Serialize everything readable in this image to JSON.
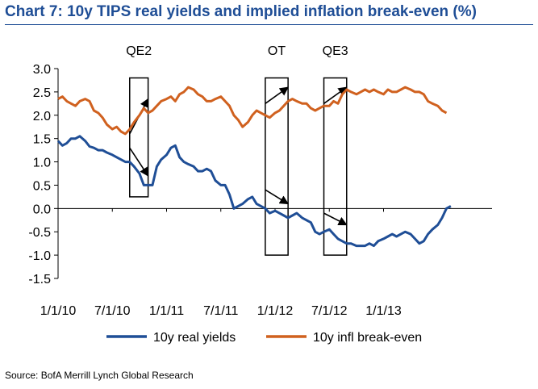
{
  "chart_data": {
    "type": "line",
    "title": "Chart 7: 10y TIPS real yields and implied inflation break-even (%)",
    "source": "Source: BofA Merrill Lynch Global Research",
    "ylim": [
      -1.5,
      3.0
    ],
    "yticks": [
      "3.0",
      "2.5",
      "2.0",
      "1.5",
      "1.0",
      "0.5",
      "0.0",
      "-0.5",
      "-1.0",
      "-1.5"
    ],
    "xlim": [
      2010.0,
      2014.0
    ],
    "xticks": [
      {
        "label": "1/1/10",
        "x": 2010.0
      },
      {
        "label": "7/1/10",
        "x": 2010.5
      },
      {
        "label": "1/1/11",
        "x": 2011.0
      },
      {
        "label": "7/1/11",
        "x": 2011.5
      },
      {
        "label": "1/1/12",
        "x": 2012.0
      },
      {
        "label": "7/1/12",
        "x": 2012.5
      },
      {
        "label": "1/1/13",
        "x": 2013.0
      }
    ],
    "legend_position": "bottom",
    "series": [
      {
        "name": "10y real yields",
        "color": "#1f4e96",
        "points": [
          [
            2010.0,
            1.45
          ],
          [
            2010.04,
            1.35
          ],
          [
            2010.08,
            1.4
          ],
          [
            2010.12,
            1.5
          ],
          [
            2010.16,
            1.5
          ],
          [
            2010.2,
            1.55
          ],
          [
            2010.25,
            1.45
          ],
          [
            2010.29,
            1.33
          ],
          [
            2010.33,
            1.3
          ],
          [
            2010.37,
            1.25
          ],
          [
            2010.41,
            1.25
          ],
          [
            2010.45,
            1.2
          ],
          [
            2010.5,
            1.15
          ],
          [
            2010.54,
            1.1
          ],
          [
            2010.58,
            1.05
          ],
          [
            2010.62,
            1.0
          ],
          [
            2010.66,
            1.0
          ],
          [
            2010.7,
            0.9
          ],
          [
            2010.75,
            0.75
          ],
          [
            2010.79,
            0.5
          ],
          [
            2010.83,
            0.5
          ],
          [
            2010.87,
            0.5
          ],
          [
            2010.91,
            0.9
          ],
          [
            2010.95,
            1.05
          ],
          [
            2011.0,
            1.15
          ],
          [
            2011.04,
            1.3
          ],
          [
            2011.08,
            1.35
          ],
          [
            2011.12,
            1.1
          ],
          [
            2011.16,
            1.0
          ],
          [
            2011.2,
            0.95
          ],
          [
            2011.25,
            0.9
          ],
          [
            2011.29,
            0.8
          ],
          [
            2011.33,
            0.8
          ],
          [
            2011.37,
            0.85
          ],
          [
            2011.41,
            0.8
          ],
          [
            2011.45,
            0.6
          ],
          [
            2011.5,
            0.5
          ],
          [
            2011.54,
            0.5
          ],
          [
            2011.58,
            0.3
          ],
          [
            2011.62,
            0.0
          ],
          [
            2011.66,
            0.05
          ],
          [
            2011.7,
            0.1
          ],
          [
            2011.75,
            0.2
          ],
          [
            2011.79,
            0.25
          ],
          [
            2011.83,
            0.1
          ],
          [
            2011.87,
            0.05
          ],
          [
            2011.91,
            0.0
          ],
          [
            2011.95,
            -0.1
          ],
          [
            2012.0,
            -0.05
          ],
          [
            2012.04,
            -0.1
          ],
          [
            2012.08,
            -0.15
          ],
          [
            2012.12,
            -0.2
          ],
          [
            2012.16,
            -0.15
          ],
          [
            2012.2,
            -0.1
          ],
          [
            2012.25,
            -0.2
          ],
          [
            2012.29,
            -0.25
          ],
          [
            2012.33,
            -0.3
          ],
          [
            2012.37,
            -0.5
          ],
          [
            2012.41,
            -0.55
          ],
          [
            2012.45,
            -0.5
          ],
          [
            2012.5,
            -0.45
          ],
          [
            2012.54,
            -0.55
          ],
          [
            2012.58,
            -0.65
          ],
          [
            2012.62,
            -0.7
          ],
          [
            2012.66,
            -0.75
          ],
          [
            2012.7,
            -0.75
          ],
          [
            2012.75,
            -0.8
          ],
          [
            2012.79,
            -0.8
          ],
          [
            2012.83,
            -0.8
          ],
          [
            2012.87,
            -0.75
          ],
          [
            2012.91,
            -0.8
          ],
          [
            2012.95,
            -0.7
          ],
          [
            2013.0,
            -0.65
          ],
          [
            2013.04,
            -0.6
          ],
          [
            2013.08,
            -0.55
          ],
          [
            2013.12,
            -0.6
          ],
          [
            2013.16,
            -0.55
          ],
          [
            2013.2,
            -0.5
          ],
          [
            2013.25,
            -0.55
          ],
          [
            2013.29,
            -0.65
          ],
          [
            2013.33,
            -0.75
          ],
          [
            2013.37,
            -0.7
          ],
          [
            2013.41,
            -0.55
          ],
          [
            2013.45,
            -0.45
          ],
          [
            2013.5,
            -0.35
          ],
          [
            2013.54,
            -0.2
          ],
          [
            2013.58,
            0.0
          ],
          [
            2013.62,
            0.05
          ]
        ]
      },
      {
        "name": "10y infl break-even",
        "color": "#d0611f",
        "points": [
          [
            2010.0,
            2.35
          ],
          [
            2010.04,
            2.4
          ],
          [
            2010.08,
            2.3
          ],
          [
            2010.12,
            2.25
          ],
          [
            2010.16,
            2.2
          ],
          [
            2010.2,
            2.3
          ],
          [
            2010.25,
            2.35
          ],
          [
            2010.29,
            2.3
          ],
          [
            2010.33,
            2.1
          ],
          [
            2010.37,
            2.05
          ],
          [
            2010.41,
            1.95
          ],
          [
            2010.45,
            1.8
          ],
          [
            2010.5,
            1.7
          ],
          [
            2010.54,
            1.75
          ],
          [
            2010.58,
            1.65
          ],
          [
            2010.62,
            1.6
          ],
          [
            2010.66,
            1.7
          ],
          [
            2010.7,
            1.85
          ],
          [
            2010.75,
            2.0
          ],
          [
            2010.79,
            2.15
          ],
          [
            2010.83,
            2.05
          ],
          [
            2010.87,
            2.1
          ],
          [
            2010.91,
            2.2
          ],
          [
            2010.95,
            2.3
          ],
          [
            2011.0,
            2.35
          ],
          [
            2011.04,
            2.4
          ],
          [
            2011.08,
            2.3
          ],
          [
            2011.12,
            2.45
          ],
          [
            2011.16,
            2.5
          ],
          [
            2011.2,
            2.6
          ],
          [
            2011.25,
            2.55
          ],
          [
            2011.29,
            2.45
          ],
          [
            2011.33,
            2.4
          ],
          [
            2011.37,
            2.3
          ],
          [
            2011.41,
            2.3
          ],
          [
            2011.45,
            2.35
          ],
          [
            2011.5,
            2.4
          ],
          [
            2011.54,
            2.3
          ],
          [
            2011.58,
            2.2
          ],
          [
            2011.62,
            2.0
          ],
          [
            2011.66,
            1.9
          ],
          [
            2011.7,
            1.75
          ],
          [
            2011.75,
            1.85
          ],
          [
            2011.79,
            2.0
          ],
          [
            2011.83,
            2.1
          ],
          [
            2011.87,
            2.05
          ],
          [
            2011.91,
            2.0
          ],
          [
            2011.95,
            1.95
          ],
          [
            2012.0,
            2.05
          ],
          [
            2012.04,
            2.1
          ],
          [
            2012.08,
            2.2
          ],
          [
            2012.12,
            2.3
          ],
          [
            2012.16,
            2.35
          ],
          [
            2012.2,
            2.3
          ],
          [
            2012.25,
            2.25
          ],
          [
            2012.29,
            2.25
          ],
          [
            2012.33,
            2.15
          ],
          [
            2012.37,
            2.1
          ],
          [
            2012.41,
            2.15
          ],
          [
            2012.45,
            2.2
          ],
          [
            2012.5,
            2.2
          ],
          [
            2012.54,
            2.3
          ],
          [
            2012.58,
            2.25
          ],
          [
            2012.62,
            2.45
          ],
          [
            2012.66,
            2.55
          ],
          [
            2012.7,
            2.5
          ],
          [
            2012.75,
            2.45
          ],
          [
            2012.79,
            2.5
          ],
          [
            2012.83,
            2.55
          ],
          [
            2012.87,
            2.5
          ],
          [
            2012.91,
            2.55
          ],
          [
            2012.95,
            2.5
          ],
          [
            2013.0,
            2.45
          ],
          [
            2013.04,
            2.55
          ],
          [
            2013.08,
            2.5
          ],
          [
            2013.12,
            2.5
          ],
          [
            2013.16,
            2.55
          ],
          [
            2013.2,
            2.6
          ],
          [
            2013.25,
            2.55
          ],
          [
            2013.29,
            2.5
          ],
          [
            2013.33,
            2.5
          ],
          [
            2013.37,
            2.45
          ],
          [
            2013.41,
            2.3
          ],
          [
            2013.45,
            2.25
          ],
          [
            2013.5,
            2.2
          ],
          [
            2013.54,
            2.1
          ],
          [
            2013.58,
            2.05
          ]
        ]
      }
    ],
    "annotations": {
      "boxes": [
        {
          "label": "QE2",
          "x0": 2010.66,
          "x1": 2010.83,
          "y0": 0.25,
          "y1": 2.8
        },
        {
          "label": "OT",
          "x0": 2011.91,
          "x1": 2012.12,
          "y0": -1.0,
          "y1": 2.8
        },
        {
          "label": "QE3",
          "x0": 2012.45,
          "x1": 2012.66,
          "y0": -1.0,
          "y1": 2.8
        }
      ],
      "arrows": [
        {
          "x0": 2010.66,
          "y0": 1.6,
          "x1": 2010.83,
          "y1": 2.35
        },
        {
          "x0": 2010.66,
          "y0": 1.3,
          "x1": 2010.83,
          "y1": 0.7
        },
        {
          "x0": 2011.91,
          "y0": 2.25,
          "x1": 2012.12,
          "y1": 2.6
        },
        {
          "x0": 2011.91,
          "y0": 0.4,
          "x1": 2012.12,
          "y1": 0.1
        },
        {
          "x0": 2012.45,
          "y0": 2.25,
          "x1": 2012.66,
          "y1": 2.6
        },
        {
          "x0": 2012.45,
          "y0": -0.1,
          "x1": 2012.66,
          "y1": -0.35
        }
      ]
    }
  }
}
